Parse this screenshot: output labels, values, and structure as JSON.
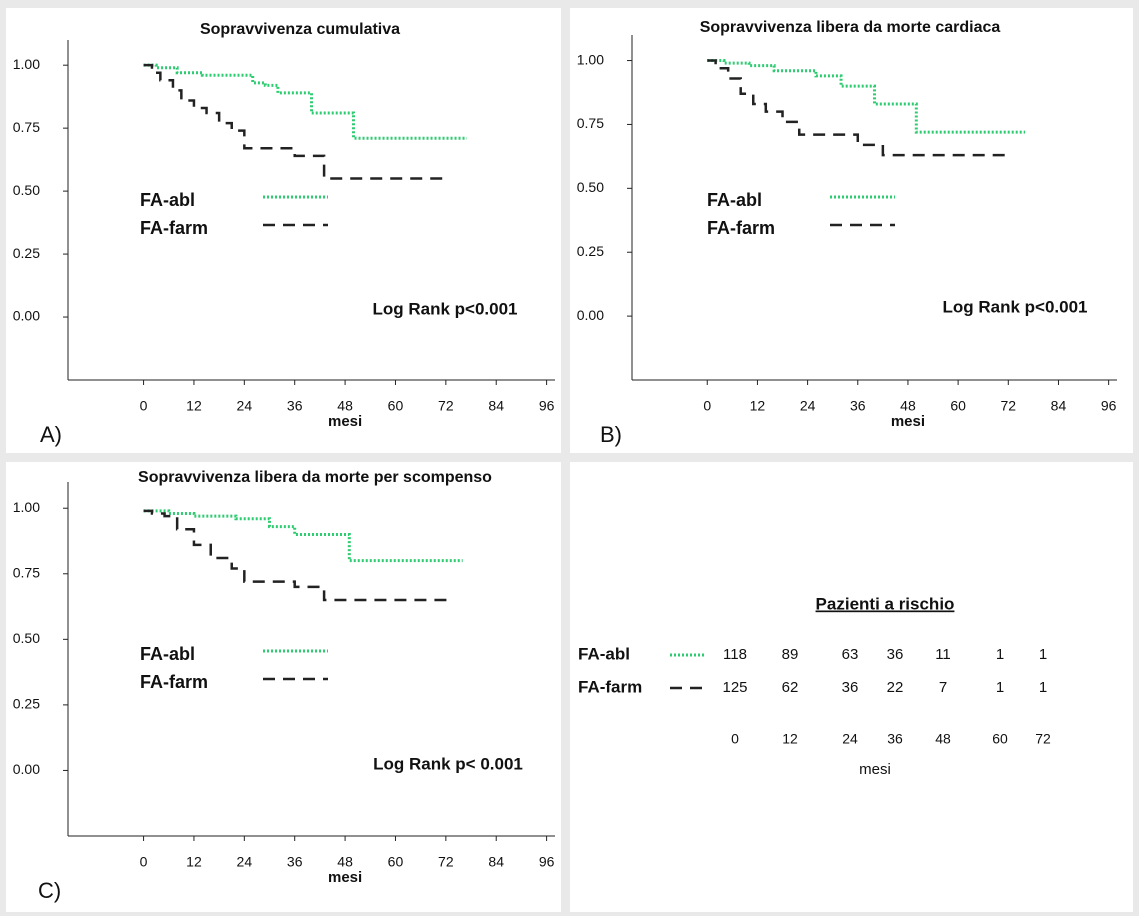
{
  "chart_data": [
    {
      "type": "line",
      "step": true,
      "title": "Sopravvivenza cumulativa",
      "panel_label": "A)",
      "x_label": "mesi",
      "annotation": "Log Rank p<0.001",
      "xlim": [
        -18,
        98
      ],
      "ylim": [
        -0.25,
        1.1
      ],
      "xticks": [
        0,
        12,
        24,
        36,
        48,
        60,
        72,
        84,
        96
      ],
      "yticks": [
        {
          "value": 0,
          "label": "0.00"
        },
        {
          "value": 0.25,
          "label": "0.25"
        },
        {
          "value": 0.5,
          "label": "0.50"
        },
        {
          "value": 0.75,
          "label": "0.75"
        },
        {
          "value": 1,
          "label": "1.00"
        }
      ],
      "series": [
        {
          "name": "FA-abl",
          "color": "#2ecc71",
          "dash": "dotted",
          "x": [
            0,
            3,
            8,
            14,
            26,
            29,
            32,
            40,
            50,
            77
          ],
          "values": [
            1.0,
            0.99,
            0.97,
            0.96,
            0.93,
            0.92,
            0.89,
            0.81,
            0.71,
            0.71
          ]
        },
        {
          "name": "FA-farm",
          "color": "#222222",
          "dash": "dashed",
          "x": [
            0,
            2,
            4,
            7,
            9,
            12,
            15,
            18,
            21,
            24,
            36,
            43,
            73
          ],
          "values": [
            1.0,
            0.97,
            0.94,
            0.9,
            0.86,
            0.83,
            0.81,
            0.77,
            0.74,
            0.67,
            0.64,
            0.55,
            0.55
          ]
        }
      ]
    },
    {
      "type": "line",
      "step": true,
      "title": "Sopravvivenza libera da morte cardiaca",
      "panel_label": "B)",
      "x_label": "mesi",
      "annotation": "Log Rank p<0.001",
      "xlim": [
        -18,
        98
      ],
      "ylim": [
        -0.25,
        1.1
      ],
      "xticks": [
        0,
        12,
        24,
        36,
        48,
        60,
        72,
        84,
        96
      ],
      "yticks": [
        {
          "value": 0,
          "label": "0.00"
        },
        {
          "value": 0.25,
          "label": "0.25"
        },
        {
          "value": 0.5,
          "label": "0.50"
        },
        {
          "value": 0.75,
          "label": "0.75"
        },
        {
          "value": 1,
          "label": "1.00"
        }
      ],
      "series": [
        {
          "name": "FA-abl",
          "color": "#2ecc71",
          "dash": "dotted",
          "x": [
            0,
            4,
            10,
            16,
            26,
            32,
            40,
            50,
            76
          ],
          "values": [
            1.0,
            0.99,
            0.98,
            0.96,
            0.94,
            0.9,
            0.83,
            0.72,
            0.72
          ]
        },
        {
          "name": "FA-farm",
          "color": "#222222",
          "dash": "dashed",
          "x": [
            0,
            2,
            5,
            8,
            11,
            14,
            18,
            22,
            36,
            42,
            72
          ],
          "values": [
            1.0,
            0.97,
            0.93,
            0.87,
            0.83,
            0.8,
            0.76,
            0.71,
            0.67,
            0.63,
            0.63
          ]
        }
      ]
    },
    {
      "type": "line",
      "step": true,
      "title": "Sopravvivenza libera da morte per scompenso",
      "panel_label": "C)",
      "x_label": "mesi",
      "annotation": "Log Rank p< 0.001",
      "xlim": [
        -18,
        98
      ],
      "ylim": [
        -0.25,
        1.1
      ],
      "xticks": [
        0,
        12,
        24,
        36,
        48,
        60,
        72,
        84,
        96
      ],
      "yticks": [
        {
          "value": 0,
          "label": "0.00"
        },
        {
          "value": 0.25,
          "label": "0.25"
        },
        {
          "value": 0.5,
          "label": "0.50"
        },
        {
          "value": 0.75,
          "label": "0.75"
        },
        {
          "value": 1,
          "label": "1.00"
        }
      ],
      "series": [
        {
          "name": "FA-abl",
          "color": "#2ecc71",
          "dash": "dotted",
          "x": [
            0,
            6,
            12,
            22,
            30,
            36,
            49,
            76
          ],
          "values": [
            0.99,
            0.98,
            0.97,
            0.96,
            0.93,
            0.9,
            0.8,
            0.8
          ]
        },
        {
          "name": "FA-farm",
          "color": "#222222",
          "dash": "dashed",
          "x": [
            0,
            2,
            5,
            8,
            12,
            16,
            21,
            24,
            36,
            43,
            73
          ],
          "values": [
            0.99,
            0.98,
            0.97,
            0.92,
            0.86,
            0.81,
            0.77,
            0.72,
            0.7,
            0.65,
            0.65
          ]
        }
      ]
    }
  ],
  "risk_table": {
    "title": "Pazienti a rischio",
    "x_label": "mesi",
    "times": [
      0,
      12,
      24,
      36,
      48,
      60,
      72
    ],
    "rows": [
      {
        "label": "FA-abl",
        "color": "#2ecc71",
        "dash": "dotted",
        "values": [
          118,
          89,
          63,
          36,
          11,
          1,
          1
        ]
      },
      {
        "label": "FA-farm",
        "color": "#222222",
        "dash": "dashed",
        "values": [
          125,
          62,
          36,
          22,
          7,
          1,
          1
        ]
      }
    ]
  }
}
